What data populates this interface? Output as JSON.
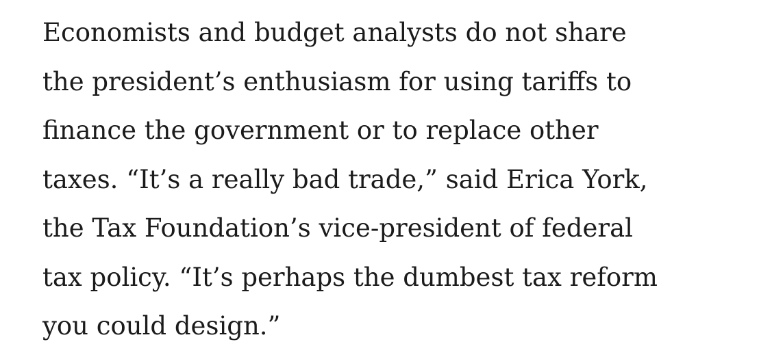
{
  "paragraph": {
    "lines": [
      "Economists and budget analysts do not share",
      "the president’s enthusiasm for using tariffs to",
      "finance the government or to replace other",
      "taxes. “It’s a really bad trade,” said Erica York,",
      "the Tax Foundation’s vice-president of federal",
      "tax policy. “It’s perhaps the dumbest tax reform",
      "you could design.”"
    ]
  }
}
